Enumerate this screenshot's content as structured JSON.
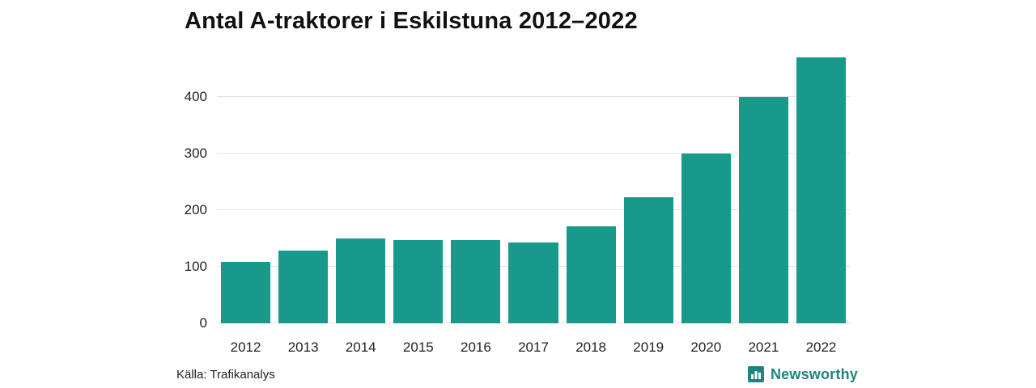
{
  "chart": {
    "title": "Antal A-traktorer i Eskilstuna 2012–2022"
  },
  "chart_data": {
    "type": "bar",
    "title": "Antal A-traktorer i Eskilstuna 2012–2022",
    "categories": [
      "2012",
      "2013",
      "2014",
      "2015",
      "2016",
      "2017",
      "2018",
      "2019",
      "2020",
      "2021",
      "2022"
    ],
    "values": [
      108,
      128,
      150,
      147,
      147,
      143,
      171,
      222,
      300,
      400,
      470
    ],
    "xlabel": "",
    "ylabel": "",
    "yticks": [
      0,
      100,
      200,
      300,
      400
    ],
    "ylim": [
      0,
      485
    ],
    "grid": true,
    "legend": "none",
    "bar_color": "#18998b",
    "grid_color": "#e3e3e3",
    "title_color": "#111111",
    "tick_color": "#222222"
  },
  "footer": {
    "source": "Källa: Trafikanalys",
    "brand": "Newsworthy",
    "brand_color": "#1d857b",
    "brand_icon": "bar-chart-badge-icon"
  }
}
